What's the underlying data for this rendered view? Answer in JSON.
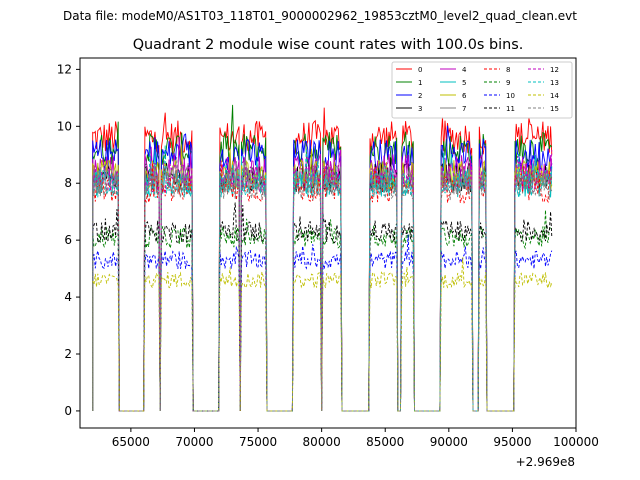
{
  "figure": {
    "suptitle": "Data file: modeM0/AS1T03_118T01_9000002962_19853cztM0_level2_quad_clean.evt"
  },
  "chart_data": {
    "type": "line",
    "title": "Quadrant 2 module wise count rates with 100.0s bins.",
    "xlabel": "",
    "ylabel": "",
    "x_offset_label": "+2.969e8",
    "xlim": [
      61000,
      100000
    ],
    "ylim": [
      -0.6,
      12.4
    ],
    "x_ticks": [
      65000,
      70000,
      75000,
      80000,
      85000,
      90000,
      95000,
      100000
    ],
    "y_ticks": [
      0,
      2,
      4,
      6,
      8,
      10,
      12
    ],
    "x_tick_labels": [
      "65000",
      "70000",
      "75000",
      "80000",
      "85000",
      "90000",
      "95000",
      "100000"
    ],
    "y_tick_labels": [
      "0",
      "2",
      "4",
      "6",
      "8",
      "10",
      "12"
    ],
    "legend_position": "top-right",
    "bin_seconds": 100,
    "gti_segments": [
      {
        "start": 62000,
        "end": 64000
      },
      {
        "start": 66100,
        "end": 67200
      },
      {
        "start": 67400,
        "end": 69800
      },
      {
        "start": 72000,
        "end": 73500
      },
      {
        "start": 73700,
        "end": 75600
      },
      {
        "start": 77800,
        "end": 79900
      },
      {
        "start": 80100,
        "end": 81500
      },
      {
        "start": 83800,
        "end": 85900
      },
      {
        "start": 86300,
        "end": 87200
      },
      {
        "start": 89400,
        "end": 91800
      },
      {
        "start": 92400,
        "end": 92900
      },
      {
        "start": 95200,
        "end": 98100
      }
    ],
    "gap_level": 0,
    "noise_amplitude": 0.35,
    "series": [
      {
        "name": "0",
        "color": "#ff0000",
        "dash": "solid",
        "level": 9.6
      },
      {
        "name": "1",
        "color": "#008000",
        "dash": "solid",
        "level": 9.2
      },
      {
        "name": "2",
        "color": "#0000ff",
        "dash": "solid",
        "level": 9.0
      },
      {
        "name": "3",
        "color": "#000000",
        "dash": "solid",
        "level": 8.2
      },
      {
        "name": "4",
        "color": "#bf00bf",
        "dash": "solid",
        "level": 8.5
      },
      {
        "name": "5",
        "color": "#00bfbf",
        "dash": "solid",
        "level": 8.0
      },
      {
        "name": "6",
        "color": "#bfbf00",
        "dash": "solid",
        "level": 8.3
      },
      {
        "name": "7",
        "color": "#808080",
        "dash": "solid",
        "level": 8.1
      },
      {
        "name": "8",
        "color": "#ff0000",
        "dash": "dashed",
        "level": 7.8
      },
      {
        "name": "9",
        "color": "#008000",
        "dash": "dashed",
        "level": 6.1
      },
      {
        "name": "10",
        "color": "#0000ff",
        "dash": "dashed",
        "level": 5.3
      },
      {
        "name": "11",
        "color": "#000000",
        "dash": "dashed",
        "level": 6.3
      },
      {
        "name": "12",
        "color": "#bf00bf",
        "dash": "dashed",
        "level": 8.2
      },
      {
        "name": "13",
        "color": "#00bfbf",
        "dash": "dashed",
        "level": 8.0
      },
      {
        "name": "14",
        "color": "#bfbf00",
        "dash": "dashed",
        "level": 4.6
      },
      {
        "name": "15",
        "color": "#808080",
        "dash": "dashed",
        "level": 7.9
      }
    ]
  }
}
